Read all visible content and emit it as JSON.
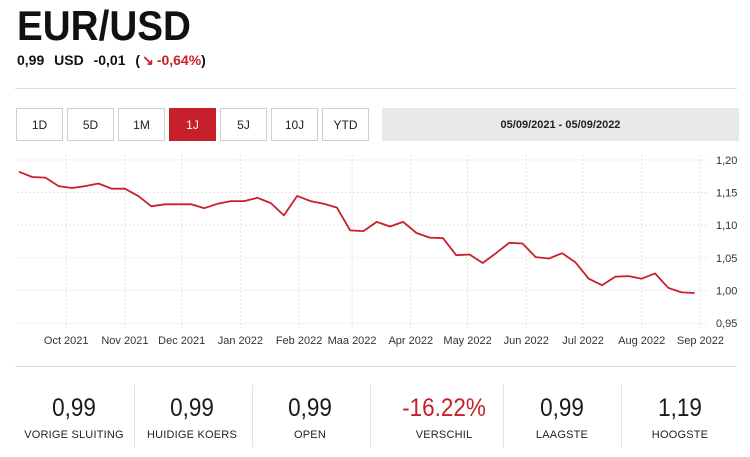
{
  "header": {
    "title": "EUR/USD",
    "price": "0,99",
    "currency": "USD",
    "change": "-0,01",
    "change_pct": "-0,64%",
    "paren_open": "(",
    "paren_close": ")",
    "arrow": "↘"
  },
  "periods": [
    "1D",
    "5D",
    "1M",
    "1J",
    "5J",
    "10J",
    "YTD"
  ],
  "active_period": "1J",
  "date_range": "05/09/2021 - 05/09/2022",
  "colors": {
    "accent": "#c8202b",
    "line": "#c8202b"
  },
  "chart_data": {
    "type": "line",
    "x": [
      "2021-09-06",
      "2021-09-13",
      "2021-09-20",
      "2021-09-27",
      "2021-10-04",
      "2021-10-11",
      "2021-10-18",
      "2021-10-25",
      "2021-11-01",
      "2021-11-08",
      "2021-11-15",
      "2021-11-22",
      "2021-11-29",
      "2021-12-06",
      "2021-12-13",
      "2021-12-20",
      "2021-12-27",
      "2022-01-03",
      "2022-01-10",
      "2022-01-17",
      "2022-01-24",
      "2022-01-31",
      "2022-02-07",
      "2022-02-14",
      "2022-02-21",
      "2022-02-28",
      "2022-03-07",
      "2022-03-14",
      "2022-03-21",
      "2022-03-28",
      "2022-04-04",
      "2022-04-11",
      "2022-04-18",
      "2022-04-25",
      "2022-05-02",
      "2022-05-09",
      "2022-05-16",
      "2022-05-23",
      "2022-05-30",
      "2022-06-06",
      "2022-06-13",
      "2022-06-20",
      "2022-06-27",
      "2022-07-04",
      "2022-07-11",
      "2022-07-18",
      "2022-07-25",
      "2022-08-01",
      "2022-08-08",
      "2022-08-15",
      "2022-08-22",
      "2022-08-29"
    ],
    "series": [
      {
        "values": [
          1.182,
          1.174,
          1.173,
          1.16,
          1.157,
          1.16,
          1.164,
          1.156,
          1.156,
          1.145,
          1.129,
          1.132,
          1.132,
          1.132,
          1.126,
          1.133,
          1.137,
          1.137,
          1.142,
          1.134,
          1.115,
          1.145,
          1.137,
          1.133,
          1.127,
          1.092,
          1.091,
          1.105,
          1.098,
          1.105,
          1.088,
          1.081,
          1.08,
          1.054,
          1.055,
          1.042,
          1.057,
          1.073,
          1.072,
          1.051,
          1.049,
          1.057,
          1.043,
          1.018,
          1.008,
          1.021,
          1.022,
          1.018,
          1.026,
          1.004,
          0.997,
          0.996
        ]
      }
    ],
    "x_ticks": [
      "Oct 2021",
      "Nov 2021",
      "Dec 2021",
      "Jan 2022",
      "Feb 2022",
      "Maa 2022",
      "Apr 2022",
      "May 2022",
      "Jun 2022",
      "Jul 2022",
      "Aug 2022",
      "Sep 2022"
    ],
    "y_ticks": [
      "1,20",
      "1,15",
      "1,10",
      "1,05",
      "1,00",
      "0,95"
    ],
    "ylim": [
      0.95,
      1.2
    ],
    "grid": true
  },
  "stats": [
    {
      "value": "0,99",
      "label": "VORIGE SLUITING"
    },
    {
      "value": "0,99",
      "label": "HUIDIGE KOERS"
    },
    {
      "value": "0,99",
      "label": "OPEN"
    },
    {
      "value": "-16.22%",
      "label": "VERSCHIL"
    },
    {
      "value": "0,99",
      "label": "LAAGSTE"
    },
    {
      "value": "1,19",
      "label": "HOOGSTE"
    }
  ]
}
